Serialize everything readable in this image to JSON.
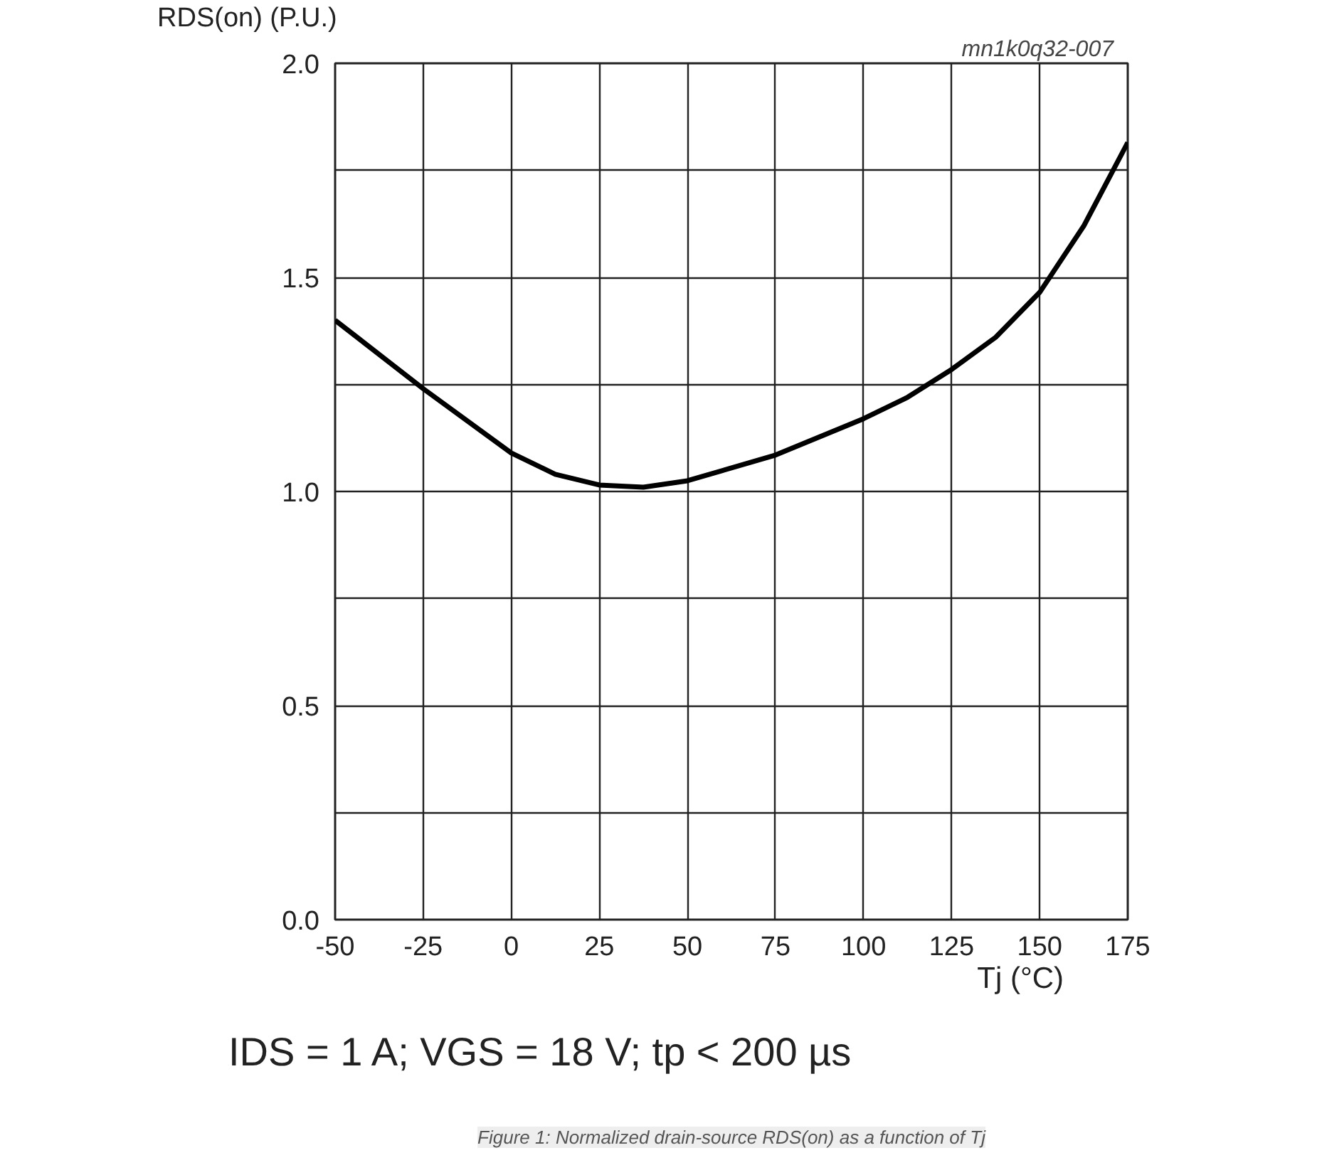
{
  "chart_data": {
    "type": "line",
    "xlabel": "Tj (°C)",
    "ylabel": "RDS(on) (P.U.)",
    "x": [
      -50,
      -25,
      0,
      12.5,
      25,
      37.5,
      50,
      75,
      100,
      112.5,
      125,
      137.5,
      150,
      162.5,
      175
    ],
    "series": [
      {
        "color": "#000000",
        "values": [
          1.4,
          1.24,
          1.09,
          1.04,
          1.015,
          1.01,
          1.025,
          1.085,
          1.17,
          1.22,
          1.285,
          1.36,
          1.465,
          1.62,
          1.815
        ]
      }
    ],
    "xlim": [
      -50,
      175
    ],
    "ylim": [
      0,
      2
    ],
    "xticks": [
      -50,
      -25,
      0,
      25,
      50,
      75,
      100,
      125,
      150,
      175
    ],
    "yticks": [
      {
        "value": 0,
        "label": "0.0"
      },
      {
        "value": 0.25,
        "label": null
      },
      {
        "value": 0.5,
        "label": "0.5"
      },
      {
        "value": 0.75,
        "label": null
      },
      {
        "value": 1,
        "label": "1.0"
      },
      {
        "value": 1.25,
        "label": null
      },
      {
        "value": 1.5,
        "label": "1.5"
      },
      {
        "value": 1.75,
        "label": null
      },
      {
        "value": 2,
        "label": "2.0"
      }
    ],
    "grid": true,
    "line_style": "solid",
    "annotations": [
      "mn1k0q32-007",
      "IDS = 1 A; VGS = 18 V; tp < 200 µs",
      "Figure 1: Normalized drain-source RDS(on) as a function of Tj"
    ]
  }
}
